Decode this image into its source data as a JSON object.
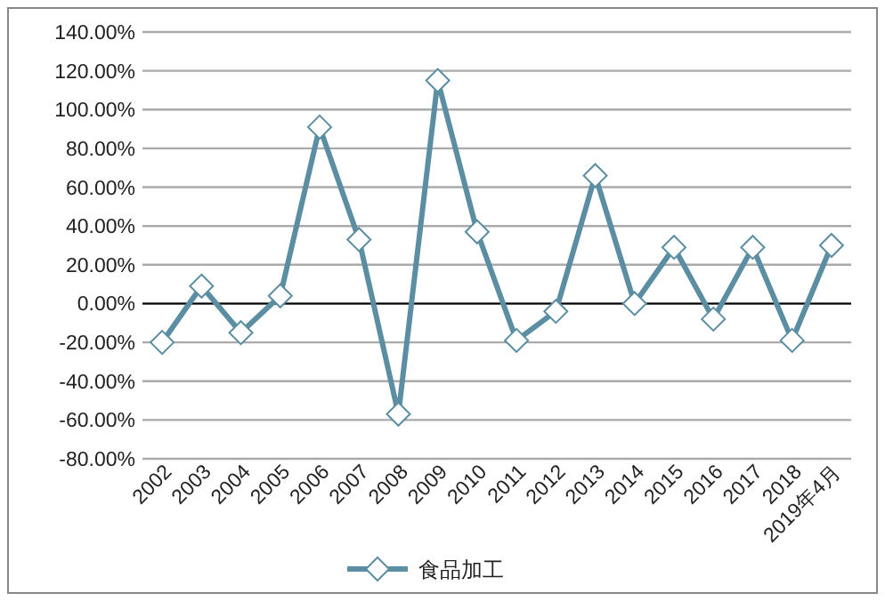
{
  "chart_data": {
    "type": "line",
    "categories": [
      "2002",
      "2003",
      "2004",
      "2005",
      "2006",
      "2007",
      "2008",
      "2009",
      "2010",
      "2011",
      "2012",
      "2013",
      "2014",
      "2015",
      "2016",
      "2017",
      "2018",
      "2019年4月"
    ],
    "series": [
      {
        "name": "食品加工",
        "color": "#5b8ea3",
        "values": [
          -20,
          9,
          -15,
          4,
          91,
          33,
          -57,
          115,
          37,
          -19,
          -4,
          66,
          0,
          29,
          -8,
          29,
          -19,
          30
        ]
      }
    ],
    "ylim": [
      -80,
      140
    ],
    "yticks": [
      {
        "value": -80,
        "label": "-80.00%"
      },
      {
        "value": -60,
        "label": "-60.00%"
      },
      {
        "value": -40,
        "label": "-40.00%"
      },
      {
        "value": -20,
        "label": "-20.00%"
      },
      {
        "value": 0,
        "label": "0.00%"
      },
      {
        "value": 20,
        "label": "20.00%"
      },
      {
        "value": 40,
        "label": "40.00%"
      },
      {
        "value": 60,
        "label": "60.00%"
      },
      {
        "value": 80,
        "label": "80.00%"
      },
      {
        "value": 100,
        "label": "100.00%"
      },
      {
        "value": 120,
        "label": "120.00%"
      },
      {
        "value": 140,
        "label": "140.00%"
      }
    ],
    "grid": "y",
    "legend": "bottom",
    "marker": "diamond",
    "line_style": "solid"
  }
}
